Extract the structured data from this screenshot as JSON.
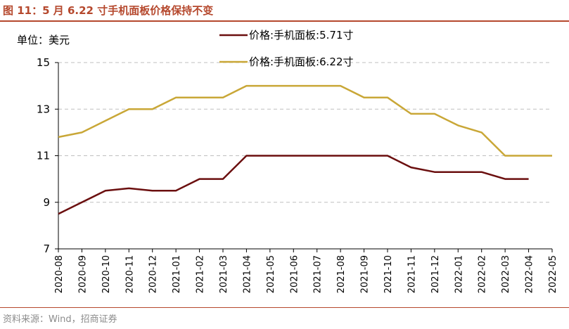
{
  "figure": {
    "title": "图 11：5 月 6.22 寸手机面板价格保持不变",
    "unit_label": "单位：美元",
    "source": "资料来源：Wind，招商证券"
  },
  "colors": {
    "accent": "#b5482d",
    "series_1": "#6b0f0f",
    "series_2": "#c9a737",
    "grid": "#bfbfbf"
  },
  "chart_data": {
    "type": "line",
    "x": [
      "2020-08",
      "2020-09",
      "2020-10",
      "2020-11",
      "2020-12",
      "2021-01",
      "2021-02",
      "2021-03",
      "2021-04",
      "2021-05",
      "2021-06",
      "2021-07",
      "2021-08",
      "2021-09",
      "2021-10",
      "2021-11",
      "2021-12",
      "2022-01",
      "2022-02",
      "2022-03",
      "2022-04",
      "2022-05"
    ],
    "yticks": [
      "7",
      "9",
      "11",
      "13",
      "15"
    ],
    "ylim": [
      7,
      15
    ],
    "grid": "horizontal-dashed",
    "legend": "top-center",
    "series": [
      {
        "name": "价格:手机面板:5.71寸",
        "values": [
          8.5,
          9.0,
          9.5,
          9.6,
          9.5,
          9.5,
          10.0,
          10.0,
          11.0,
          11.0,
          11.0,
          11.0,
          11.0,
          11.0,
          11.0,
          10.5,
          10.3,
          10.3,
          10.3,
          10.0,
          10.0,
          null
        ]
      },
      {
        "name": "价格:手机面板:6.22寸",
        "values": [
          11.8,
          12.0,
          12.5,
          13.0,
          13.0,
          13.5,
          13.5,
          13.5,
          14.0,
          14.0,
          14.0,
          14.0,
          14.0,
          13.5,
          13.5,
          12.8,
          12.8,
          12.3,
          12.0,
          11.0,
          11.0,
          11.0
        ]
      }
    ]
  }
}
